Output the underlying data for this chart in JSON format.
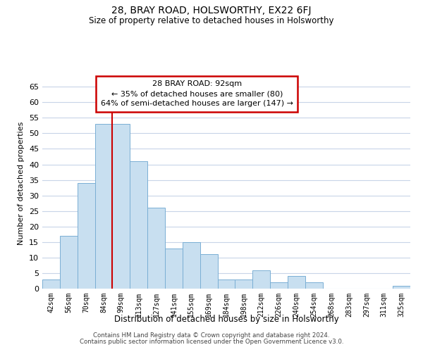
{
  "title": "28, BRAY ROAD, HOLSWORTHY, EX22 6FJ",
  "subtitle": "Size of property relative to detached houses in Holsworthy",
  "xlabel": "Distribution of detached houses by size in Holsworthy",
  "ylabel": "Number of detached properties",
  "bar_labels": [
    "42sqm",
    "56sqm",
    "70sqm",
    "84sqm",
    "99sqm",
    "113sqm",
    "127sqm",
    "141sqm",
    "155sqm",
    "169sqm",
    "184sqm",
    "198sqm",
    "212sqm",
    "226sqm",
    "240sqm",
    "254sqm",
    "268sqm",
    "283sqm",
    "297sqm",
    "311sqm",
    "325sqm"
  ],
  "bar_values": [
    3,
    17,
    34,
    53,
    53,
    41,
    26,
    13,
    15,
    11,
    3,
    3,
    6,
    2,
    4,
    2,
    0,
    0,
    0,
    0,
    1
  ],
  "bar_color": "#c8dff0",
  "bar_edge_color": "#7aafd4",
  "vline_color": "#cc0000",
  "vline_x": 3.5,
  "annotation_title": "28 BRAY ROAD: 92sqm",
  "annotation_line1": "← 35% of detached houses are smaller (80)",
  "annotation_line2": "64% of semi-detached houses are larger (147) →",
  "annotation_box_color": "#ffffff",
  "annotation_box_edge": "#cc0000",
  "ylim": [
    0,
    68
  ],
  "yticks": [
    0,
    5,
    10,
    15,
    20,
    25,
    30,
    35,
    40,
    45,
    50,
    55,
    60,
    65
  ],
  "footer1": "Contains HM Land Registry data © Crown copyright and database right 2024.",
  "footer2": "Contains public sector information licensed under the Open Government Licence v3.0.",
  "background_color": "#ffffff",
  "grid_color": "#c8d4e8"
}
